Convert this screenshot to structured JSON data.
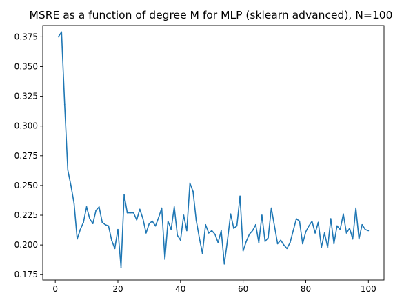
{
  "chart_data": {
    "type": "line",
    "title": "MSRE as a function of degree M for MLP (sklearn advanced), N=100",
    "xlabel": "",
    "ylabel": "",
    "xlim": [
      -4,
      105
    ],
    "ylim": [
      0.1705,
      0.3845
    ],
    "x_ticks": [
      0,
      20,
      40,
      60,
      80,
      100
    ],
    "x_tick_labels": [
      "0",
      "20",
      "40",
      "60",
      "80",
      "100"
    ],
    "y_ticks": [
      0.175,
      0.2,
      0.225,
      0.25,
      0.275,
      0.3,
      0.325,
      0.35,
      0.375
    ],
    "y_tick_labels": [
      "0.175",
      "0.200",
      "0.225",
      "0.250",
      "0.275",
      "0.300",
      "0.325",
      "0.350",
      "0.375"
    ],
    "grid": false,
    "series_color": "#1f77b4",
    "series": [
      {
        "x": [
          1,
          2,
          3,
          4,
          5,
          6,
          7,
          8,
          9,
          10,
          11,
          12,
          13,
          14,
          15,
          16,
          17,
          18,
          19,
          20,
          21,
          22,
          23,
          24,
          25,
          26,
          27,
          28,
          29,
          30,
          31,
          32,
          33,
          34,
          35,
          36,
          37,
          38,
          39,
          40,
          41,
          42,
          43,
          44,
          45,
          46,
          47,
          48,
          49,
          50,
          51,
          52,
          53,
          54,
          55,
          56,
          57,
          58,
          59,
          60,
          61,
          62,
          63,
          64,
          65,
          66,
          67,
          68,
          69,
          70,
          71,
          72,
          73,
          74,
          75,
          76,
          77,
          78,
          79,
          80,
          81,
          82,
          83,
          84,
          85,
          86,
          87,
          88,
          89,
          90,
          91,
          92,
          93,
          94,
          95,
          96,
          97,
          98,
          99,
          100
        ],
        "values": [
          0.375,
          0.379,
          0.318,
          0.263,
          0.25,
          0.235,
          0.205,
          0.213,
          0.219,
          0.232,
          0.222,
          0.218,
          0.229,
          0.232,
          0.219,
          0.217,
          0.216,
          0.204,
          0.197,
          0.213,
          0.181,
          0.242,
          0.227,
          0.227,
          0.227,
          0.221,
          0.23,
          0.222,
          0.21,
          0.218,
          0.22,
          0.216,
          0.223,
          0.231,
          0.188,
          0.22,
          0.213,
          0.232,
          0.208,
          0.204,
          0.225,
          0.212,
          0.252,
          0.245,
          0.221,
          0.206,
          0.193,
          0.217,
          0.21,
          0.212,
          0.209,
          0.202,
          0.212,
          0.184,
          0.204,
          0.226,
          0.214,
          0.216,
          0.241,
          0.195,
          0.203,
          0.209,
          0.212,
          0.217,
          0.202,
          0.225,
          0.203,
          0.206,
          0.231,
          0.216,
          0.201,
          0.204,
          0.2,
          0.197,
          0.202,
          0.212,
          0.222,
          0.22,
          0.201,
          0.211,
          0.216,
          0.22,
          0.21,
          0.219,
          0.198,
          0.21,
          0.198,
          0.222,
          0.201,
          0.216,
          0.213,
          0.226,
          0.21,
          0.214,
          0.205,
          0.231,
          0.205,
          0.217,
          0.213,
          0.212
        ]
      }
    ]
  }
}
